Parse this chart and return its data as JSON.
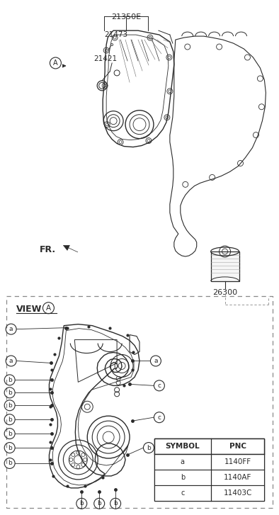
{
  "bg_color": "#ffffff",
  "line_color": "#2a2a2a",
  "part_numbers": {
    "top_label": "21350E",
    "part1": "21473",
    "part2": "21421",
    "part3": "26300"
  },
  "view_label": "VIEW",
  "fr_label": "FR.",
  "symbol_table": {
    "header": [
      "SYMBOL",
      "PNC"
    ],
    "rows": [
      [
        "a",
        "1140FF"
      ],
      [
        "b",
        "1140AF"
      ],
      [
        "c",
        "11403C"
      ]
    ]
  }
}
